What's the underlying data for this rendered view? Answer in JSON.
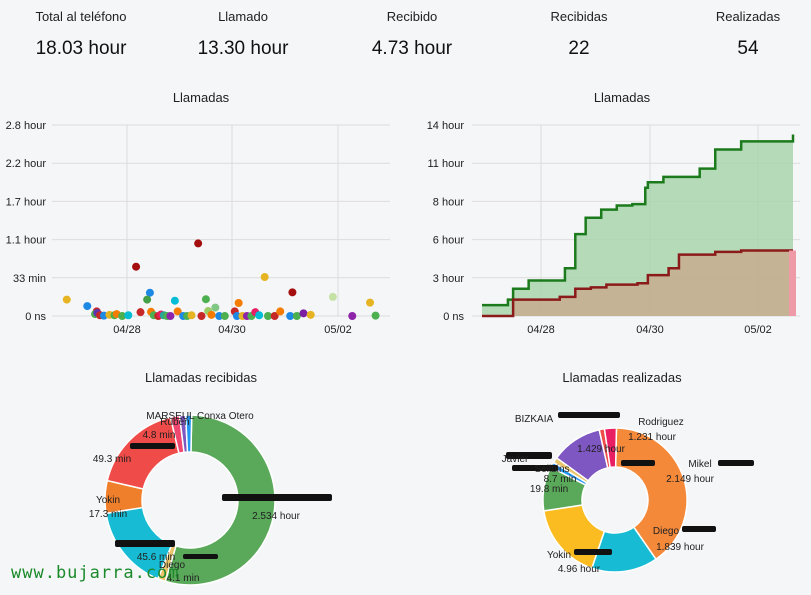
{
  "stats": [
    {
      "label": "Total al teléfono",
      "value": "18.03 hour"
    },
    {
      "label": "Llamado",
      "value": "13.30 hour"
    },
    {
      "label": "Recibido",
      "value": "4.73 hour"
    },
    {
      "label": "Recibidas",
      "value": "22"
    },
    {
      "label": "Realizadas",
      "value": "54"
    }
  ],
  "chart_data": [
    {
      "type": "scatter",
      "title": "Llamadas",
      "y_ticks": [
        "0 ns",
        "33 min",
        "1.1 hour",
        "1.7 hour",
        "2.2 hour",
        "2.8 hour"
      ],
      "x_ticks": [
        "04/28",
        "04/30",
        "05/02"
      ],
      "grid": true,
      "points": [
        {
          "x": 0.05,
          "y": 0.43,
          "color": "#e6b422"
        },
        {
          "x": 0.42,
          "y": 0.26,
          "color": "#1e88e5"
        },
        {
          "x": 0.59,
          "y": 0.12,
          "color": "#c62828"
        },
        {
          "x": 0.56,
          "y": 0.05,
          "color": "#4caf50"
        },
        {
          "x": 0.6,
          "y": 0.08,
          "color": "#5e35b1"
        },
        {
          "x": 0.65,
          "y": 0.02,
          "color": "#c62828"
        },
        {
          "x": 0.72,
          "y": 0.01,
          "color": "#1e88e5"
        },
        {
          "x": 0.82,
          "y": 0.03,
          "color": "#e6b422"
        },
        {
          "x": 0.91,
          "y": 0.02,
          "color": "#4caf50"
        },
        {
          "x": 0.95,
          "y": 0.05,
          "color": "#f57c00"
        },
        {
          "x": 1.05,
          "y": 0.0,
          "color": "#4caf50"
        },
        {
          "x": 1.16,
          "y": 0.02,
          "color": "#00bcd4"
        },
        {
          "x": 1.3,
          "y": 1.29,
          "color": "#a50e0e"
        },
        {
          "x": 1.38,
          "y": 0.1,
          "color": "#c62828"
        },
        {
          "x": 1.55,
          "y": 0.61,
          "color": "#1e88e5"
        },
        {
          "x": 1.5,
          "y": 0.43,
          "color": "#43a047"
        },
        {
          "x": 1.57,
          "y": 0.11,
          "color": "#f57c00"
        },
        {
          "x": 1.62,
          "y": 0.02,
          "color": "#4caf50"
        },
        {
          "x": 1.7,
          "y": 0.0,
          "color": "#c62828"
        },
        {
          "x": 1.75,
          "y": 0.04,
          "color": "#e91e63"
        },
        {
          "x": 1.8,
          "y": 0.02,
          "color": "#26a69a"
        },
        {
          "x": 1.86,
          "y": 0.0,
          "color": "#4caf50"
        },
        {
          "x": 1.92,
          "y": 0.0,
          "color": "#8e24aa"
        },
        {
          "x": 2.0,
          "y": 0.4,
          "color": "#00bcd4"
        },
        {
          "x": 2.05,
          "y": 0.12,
          "color": "#f57c00"
        },
        {
          "x": 2.15,
          "y": 0.0,
          "color": "#1e88e5"
        },
        {
          "x": 2.22,
          "y": 0.0,
          "color": "#4caf50"
        },
        {
          "x": 2.3,
          "y": 0.02,
          "color": "#e6b422"
        },
        {
          "x": 2.42,
          "y": 1.9,
          "color": "#a50e0e"
        },
        {
          "x": 2.48,
          "y": 0.0,
          "color": "#c62828"
        },
        {
          "x": 2.56,
          "y": 0.44,
          "color": "#4caf50"
        },
        {
          "x": 2.6,
          "y": 0.13,
          "color": "#9ccc65"
        },
        {
          "x": 2.66,
          "y": 0.03,
          "color": "#f57c00"
        },
        {
          "x": 2.73,
          "y": 0.22,
          "color": "#81c784"
        },
        {
          "x": 2.8,
          "y": 0.0,
          "color": "#1e88e5"
        },
        {
          "x": 2.9,
          "y": 0.0,
          "color": "#4caf50"
        },
        {
          "x": 3.08,
          "y": 0.12,
          "color": "#c62828"
        },
        {
          "x": 3.12,
          "y": 0.0,
          "color": "#1e88e5"
        },
        {
          "x": 3.15,
          "y": 0.34,
          "color": "#f57c00"
        },
        {
          "x": 3.22,
          "y": 0.0,
          "color": "#e6b422"
        },
        {
          "x": 3.3,
          "y": 0.0,
          "color": "#8e24aa"
        },
        {
          "x": 3.38,
          "y": 0.0,
          "color": "#4caf50"
        },
        {
          "x": 3.45,
          "y": 0.1,
          "color": "#e91e63"
        },
        {
          "x": 3.52,
          "y": 0.02,
          "color": "#00bcd4"
        },
        {
          "x": 3.62,
          "y": 1.02,
          "color": "#e6b422"
        },
        {
          "x": 3.68,
          "y": 0.0,
          "color": "#4caf50"
        },
        {
          "x": 3.8,
          "y": 0.0,
          "color": "#c62828"
        },
        {
          "x": 3.9,
          "y": 0.12,
          "color": "#f57c00"
        },
        {
          "x": 4.08,
          "y": 0.0,
          "color": "#1e88e5"
        },
        {
          "x": 4.2,
          "y": 0.0,
          "color": "#4caf50"
        },
        {
          "x": 4.32,
          "y": 0.07,
          "color": "#7b1fa2"
        },
        {
          "x": 4.45,
          "y": 0.03,
          "color": "#e6b422"
        },
        {
          "x": 4.12,
          "y": 0.62,
          "color": "#a50e0e"
        },
        {
          "x": 4.85,
          "y": 0.5,
          "color": "#c5e1a5"
        },
        {
          "x": 5.2,
          "y": 0.0,
          "color": "#8e24aa"
        },
        {
          "x": 5.52,
          "y": 0.35,
          "color": "#e6b422"
        },
        {
          "x": 5.62,
          "y": 0.01,
          "color": "#4caf50"
        }
      ]
    },
    {
      "type": "area",
      "title": "Llamadas",
      "y_ticks": [
        "0 ns",
        "3 hour",
        "6 hour",
        "8 hour",
        "11 hour",
        "14 hour"
      ],
      "x_ticks": [
        "04/28",
        "04/30",
        "05/02"
      ],
      "grid": true,
      "series": [
        {
          "color": "#1b7a1b",
          "fill": "#a8d5ad",
          "points": [
            [
              0,
              0.8
            ],
            [
              0.5,
              1.2
            ],
            [
              0.6,
              2
            ],
            [
              0.9,
              2.6
            ],
            [
              1.5,
              2.6
            ],
            [
              1.6,
              3.5
            ],
            [
              1.8,
              6
            ],
            [
              2.0,
              7.2
            ],
            [
              2.3,
              7.8
            ],
            [
              2.6,
              8.1
            ],
            [
              2.9,
              8.2
            ],
            [
              3.15,
              9.4
            ],
            [
              3.2,
              9.8
            ],
            [
              3.5,
              10.2
            ],
            [
              4.2,
              10.8
            ],
            [
              4.5,
              12.2
            ],
            [
              5.0,
              12.8
            ],
            [
              5.6,
              12.8
            ],
            [
              6.0,
              13.3
            ]
          ]
        },
        {
          "color": "#8b1a1a",
          "fill": "#c9a68a",
          "points": [
            [
              0,
              0
            ],
            [
              0.6,
              1.2
            ],
            [
              1.2,
              1.2
            ],
            [
              1.5,
              1.4
            ],
            [
              1.8,
              2
            ],
            [
              2.1,
              2.1
            ],
            [
              2.4,
              2.3
            ],
            [
              3.0,
              2.4
            ],
            [
              3.2,
              3.0
            ],
            [
              3.6,
              3.5
            ],
            [
              3.8,
              4.5
            ],
            [
              4.5,
              4.7
            ],
            [
              5.0,
              4.8
            ],
            [
              6.0,
              4.8
            ]
          ]
        }
      ]
    },
    {
      "type": "pie",
      "title": "Llamadas recibidas",
      "slices": [
        {
          "label": "2.534 hour",
          "value": 152,
          "color": "#5aa95a"
        },
        {
          "label": "4.1 min",
          "value": 4.1,
          "color": "#e9c46a"
        },
        {
          "label": "45.6 min",
          "value": 45.6,
          "color": "#17bcd4"
        },
        {
          "label": "17.3 min",
          "value": 17.3,
          "color": "#f07f2c"
        },
        {
          "label": "49.3 min",
          "value": 49.3,
          "color": "#ef4b48"
        },
        {
          "label": "4.8 min",
          "value": 4.8,
          "color": "#ef476f"
        },
        {
          "label": "",
          "value": 3.2,
          "color": "#7e57c2"
        },
        {
          "label": "",
          "value": 3.2,
          "color": "#2196f3"
        }
      ],
      "outer_labels": [
        "Yokin",
        "Diego",
        "Rubén",
        "MARSEUL Conxa Otero"
      ]
    },
    {
      "type": "pie",
      "title": "Llamadas realizadas",
      "slices": [
        {
          "label": "4.96 hour",
          "value": 297.6,
          "color": "#f5893a"
        },
        {
          "label": "1.839 hour",
          "value": 110.3,
          "color": "#17bcd4"
        },
        {
          "label": "2.149 hour",
          "value": 128.9,
          "color": "#fbbc22"
        },
        {
          "label": "1.231 hour",
          "value": 73.9,
          "color": "#5aa95a"
        },
        {
          "label": "",
          "value": 9,
          "color": "#2196f3"
        },
        {
          "label": "",
          "value": 9,
          "color": "#e9c46a"
        },
        {
          "label": "1.429 hour",
          "value": 85.7,
          "color": "#7e57c2"
        },
        {
          "label": "8.7 min",
          "value": 8.7,
          "color": "#ef4b48"
        },
        {
          "label": "19.8 min",
          "value": 19.8,
          "color": "#e91e63"
        }
      ],
      "outer_labels": [
        "Yokin",
        "Diego",
        "Mikel",
        "Rodriguez",
        "Javier",
        "BIZKAIA",
        "Seilbins"
      ]
    }
  ],
  "watermark": "www.bujarra.com"
}
